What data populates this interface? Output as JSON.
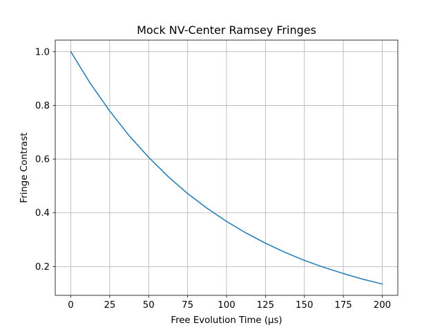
{
  "chart_data": {
    "type": "line",
    "title": "Mock NV-Center Ramsey Fringes",
    "xlabel": "Free Evolution Time (μs)",
    "ylabel": "Fringe Contrast",
    "xlim": [
      -10,
      210
    ],
    "ylim": [
      0.0928,
      1.0432
    ],
    "xticks": [
      0,
      25,
      50,
      75,
      100,
      125,
      150,
      175,
      200
    ],
    "yticks": [
      0.2,
      0.4,
      0.6,
      0.8,
      1.0
    ],
    "xtick_labels": [
      "0",
      "25",
      "50",
      "75",
      "100",
      "125",
      "150",
      "175",
      "200"
    ],
    "ytick_labels": [
      "0.2",
      "0.4",
      "0.6",
      "0.8",
      "1.0"
    ],
    "grid": true,
    "series": [
      {
        "color": "#1f77b4",
        "x": [
          0,
          12.5,
          25,
          37.5,
          50,
          62.5,
          75,
          87.5,
          100,
          112.5,
          125,
          137.5,
          150,
          162.5,
          175,
          187.5,
          200
        ],
        "y": [
          1.0,
          0.882,
          0.779,
          0.687,
          0.607,
          0.535,
          0.472,
          0.417,
          0.368,
          0.325,
          0.287,
          0.253,
          0.223,
          0.197,
          0.174,
          0.153,
          0.135
        ]
      }
    ]
  }
}
